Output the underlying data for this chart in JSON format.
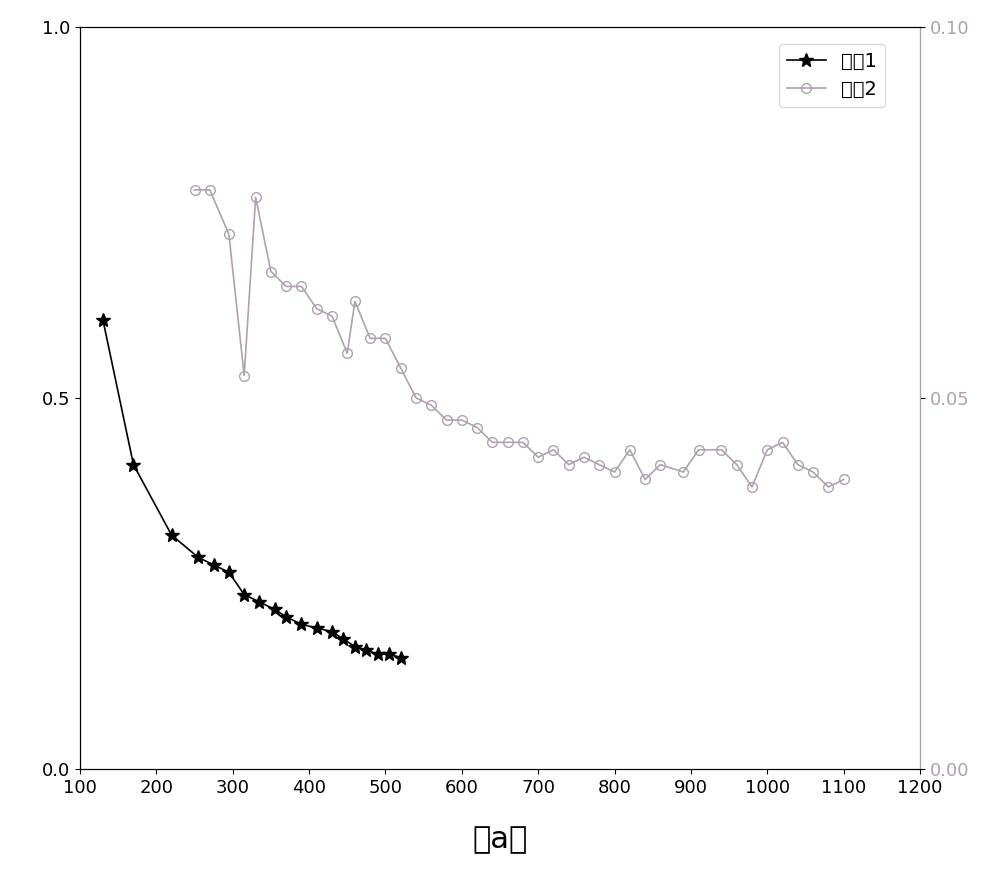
{
  "series1_x": [
    130,
    170,
    220,
    255,
    275,
    295,
    315,
    335,
    355,
    370,
    390,
    410,
    430,
    445,
    460,
    475,
    490,
    505,
    520
  ],
  "series1_y": [
    0.605,
    0.41,
    0.315,
    0.285,
    0.275,
    0.265,
    0.235,
    0.225,
    0.215,
    0.205,
    0.195,
    0.19,
    0.185,
    0.175,
    0.165,
    0.16,
    0.155,
    0.155,
    0.15
  ],
  "series2_x": [
    250,
    270,
    295,
    315,
    330,
    350,
    370,
    390,
    410,
    430,
    450,
    460,
    480,
    500,
    520,
    540,
    560,
    580,
    600,
    620,
    640,
    660,
    680,
    700,
    720,
    740,
    760,
    780,
    800,
    820,
    840,
    860,
    890,
    910,
    940,
    960,
    980,
    1000,
    1020,
    1040,
    1060,
    1080,
    1100
  ],
  "series2_y": [
    0.078,
    0.078,
    0.072,
    0.053,
    0.077,
    0.067,
    0.065,
    0.065,
    0.062,
    0.061,
    0.056,
    0.063,
    0.058,
    0.058,
    0.054,
    0.05,
    0.049,
    0.047,
    0.047,
    0.046,
    0.044,
    0.044,
    0.044,
    0.042,
    0.043,
    0.041,
    0.042,
    0.041,
    0.04,
    0.043,
    0.039,
    0.041,
    0.04,
    0.043,
    0.043,
    0.041,
    0.038,
    0.043,
    0.044,
    0.041,
    0.04,
    0.038,
    0.039
  ],
  "left_ylim": [
    0,
    1.0
  ],
  "right_ylim": [
    0,
    0.1
  ],
  "xlim": [
    100,
    1200
  ],
  "left_yticks": [
    0,
    0.5,
    1
  ],
  "right_yticks": [
    0,
    0.05,
    0.1
  ],
  "xticks": [
    100,
    200,
    300,
    400,
    500,
    600,
    700,
    800,
    900,
    1000,
    1100,
    1200
  ],
  "series1_color": "#000000",
  "series2_color": "#b0a0b0",
  "series1_label": "风洞1",
  "series2_label": "风洞2",
  "subtitle": "a",
  "background_color": "#ffffff"
}
